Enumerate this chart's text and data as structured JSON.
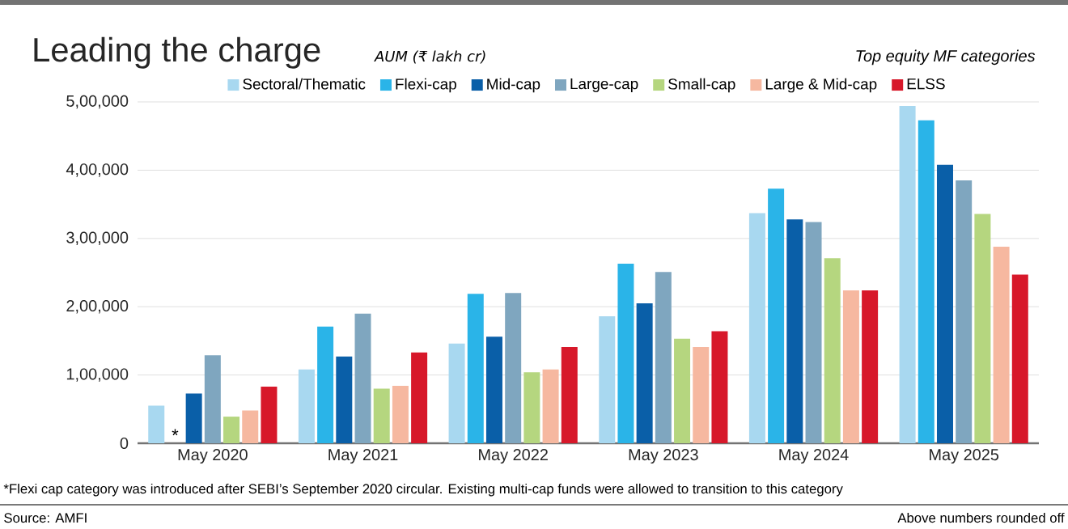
{
  "chart_data": {
    "type": "bar",
    "title": "Leading the charge",
    "subtitle": "AUM (₹ lakh cr)",
    "categories": [
      "May 2020",
      "May 2021",
      "May 2022",
      "May 2023",
      "May 2024",
      "May 2025"
    ],
    "series": [
      {
        "name": "Sectoral/Thematic",
        "color": "#a8d8f0",
        "values": [
          55000,
          108000,
          146000,
          186000,
          337000,
          494000
        ]
      },
      {
        "name": "Flexi-cap",
        "color": "#2ab4e8",
        "values": [
          null,
          171000,
          219000,
          263000,
          373000,
          473000
        ]
      },
      {
        "name": "Mid-cap",
        "color": "#0a5fa8",
        "values": [
          73000,
          127000,
          156000,
          205000,
          328000,
          408000
        ]
      },
      {
        "name": "Large-cap",
        "color": "#7fa6bf",
        "values": [
          129000,
          190000,
          220000,
          251000,
          324000,
          385000
        ]
      },
      {
        "name": "Small-cap",
        "color": "#b5d67f",
        "values": [
          39000,
          80000,
          104000,
          153000,
          271000,
          336000
        ]
      },
      {
        "name": "Large & Mid-cap",
        "color": "#f6b8a0",
        "values": [
          48000,
          84000,
          108000,
          141000,
          224000,
          288000
        ]
      },
      {
        "name": "ELSS",
        "color": "#d7182a",
        "values": [
          83000,
          133000,
          141000,
          164000,
          224000,
          247000
        ]
      }
    ],
    "ylim": [
      0,
      500000
    ],
    "yticks": [
      0,
      {
        "value": 100000,
        "label": "1,00,000"
      },
      {
        "value": 200000,
        "label": "2,00,000"
      },
      {
        "value": 300000,
        "label": "3,00,000"
      },
      {
        "value": 400000,
        "label": "4,00,000"
      },
      {
        "value": 500000,
        "label": "5,00,000"
      }
    ],
    "grid": "y",
    "legend": "top",
    "annotations": [
      "Top equity MF categories",
      {
        "text": "*",
        "x": "May 2020",
        "y": 0
      },
      "*Flexi cap category was introduced after SEBI’s September 2020 circular. Existing multi-cap funds were allowed to transition to this category",
      "Source: AMFI",
      "Above numbers rounded off"
    ]
  }
}
